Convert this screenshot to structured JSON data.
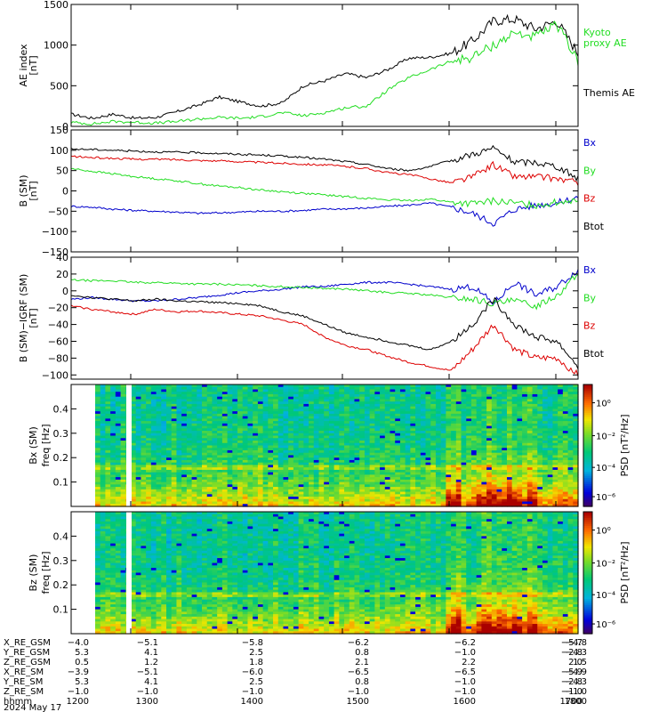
{
  "colors": {
    "black": "#000000",
    "green": "#22dd22",
    "red": "#dd0000",
    "blue": "#0000cc"
  },
  "chart_data": [
    {
      "type": "line",
      "ylabel": "AE index\n[nT]",
      "ylim": [
        0,
        1500
      ],
      "yticks": [
        0,
        500,
        1000,
        1500
      ],
      "x": [
        "1200",
        "1215",
        "1230",
        "1245",
        "1300",
        "1315",
        "1330",
        "1345",
        "1400",
        "1415",
        "1430",
        "1445",
        "1500",
        "1515",
        "1530",
        "1545",
        "1600",
        "1615",
        "1630",
        "1645",
        "1700",
        "1715",
        "1730",
        "1745",
        "1800"
      ],
      "series": [
        {
          "name": "Themis AE",
          "color": "black",
          "values": [
            150,
            100,
            150,
            100,
            110,
            180,
            260,
            360,
            300,
            250,
            290,
            500,
            560,
            650,
            600,
            700,
            840,
            850,
            900,
            1050,
            1300,
            1320,
            1200,
            1300,
            900
          ]
        },
        {
          "name": "Kyoto\nproxy AE",
          "color": "green",
          "values": [
            50,
            30,
            60,
            50,
            40,
            60,
            90,
            110,
            100,
            120,
            170,
            130,
            170,
            230,
            250,
            450,
            600,
            700,
            800,
            850,
            1000,
            1150,
            1100,
            1250,
            800
          ]
        }
      ]
    },
    {
      "type": "line",
      "ylabel": "B (SM)\n[nT]",
      "ylim": [
        -150,
        150
      ],
      "yticks": [
        -150,
        -100,
        -50,
        0,
        50,
        100,
        150
      ],
      "x": [
        "1200",
        "1215",
        "1230",
        "1245",
        "1300",
        "1315",
        "1330",
        "1345",
        "1400",
        "1415",
        "1430",
        "1445",
        "1500",
        "1515",
        "1530",
        "1545",
        "1600",
        "1615",
        "1630",
        "1645",
        "1700",
        "1715",
        "1730",
        "1745",
        "1800"
      ],
      "series": [
        {
          "name": "Bx",
          "color": "blue",
          "values": [
            -38,
            -40,
            -45,
            -48,
            -50,
            -52,
            -55,
            -54,
            -52,
            -50,
            -50,
            -48,
            -45,
            -44,
            -42,
            -38,
            -35,
            -30,
            -40,
            -55,
            -80,
            -45,
            -35,
            -30,
            -15
          ]
        },
        {
          "name": "By",
          "color": "green",
          "values": [
            55,
            48,
            42,
            35,
            30,
            25,
            18,
            12,
            8,
            2,
            -2,
            -6,
            -10,
            -14,
            -18,
            -22,
            -24,
            -20,
            -28,
            -32,
            -25,
            -30,
            -35,
            -28,
            -20
          ]
        },
        {
          "name": "Bz",
          "color": "red",
          "values": [
            85,
            82,
            80,
            78,
            78,
            77,
            75,
            74,
            72,
            70,
            68,
            66,
            64,
            60,
            55,
            45,
            40,
            30,
            20,
            35,
            65,
            35,
            35,
            30,
            20
          ]
        },
        {
          "name": "Btot",
          "color": "black",
          "values": [
            103,
            102,
            100,
            98,
            96,
            95,
            94,
            92,
            90,
            88,
            86,
            82,
            78,
            72,
            65,
            55,
            50,
            60,
            75,
            90,
            105,
            70,
            70,
            60,
            30
          ]
        }
      ]
    },
    {
      "type": "line",
      "ylabel": "B (SM)−IGRF (SM)\n[nT]",
      "ylim": [
        -105,
        40
      ],
      "yticks": [
        -100,
        -80,
        -60,
        -40,
        -20,
        0,
        20,
        40
      ],
      "x": [
        "1200",
        "1215",
        "1230",
        "1245",
        "1300",
        "1315",
        "1330",
        "1345",
        "1400",
        "1415",
        "1430",
        "1445",
        "1500",
        "1515",
        "1530",
        "1545",
        "1600",
        "1615",
        "1630",
        "1645",
        "1700",
        "1715",
        "1730",
        "1745",
        "1800"
      ],
      "series": [
        {
          "name": "Bx",
          "color": "blue",
          "values": [
            -10,
            -8,
            -10,
            -12,
            -12,
            -10,
            -8,
            -5,
            -2,
            0,
            2,
            5,
            5,
            8,
            10,
            10,
            8,
            5,
            2,
            5,
            -15,
            10,
            -5,
            5,
            25
          ]
        },
        {
          "name": "By",
          "color": "green",
          "values": [
            13,
            12,
            12,
            10,
            10,
            9,
            8,
            8,
            7,
            6,
            5,
            4,
            3,
            2,
            0,
            -2,
            -3,
            -5,
            -8,
            -10,
            -15,
            -12,
            -18,
            -5,
            20
          ]
        },
        {
          "name": "Bz",
          "color": "red",
          "values": [
            -18,
            -22,
            -25,
            -28,
            -22,
            -25,
            -24,
            -26,
            -28,
            -30,
            -35,
            -40,
            -55,
            -65,
            -70,
            -78,
            -85,
            -90,
            -95,
            -70,
            -40,
            -70,
            -80,
            -80,
            -100
          ]
        },
        {
          "name": "Btot",
          "color": "black",
          "values": [
            -5,
            -8,
            -10,
            -12,
            -10,
            -12,
            -13,
            -14,
            -15,
            -18,
            -25,
            -30,
            -40,
            -50,
            -55,
            -60,
            -65,
            -70,
            -60,
            -40,
            -10,
            -40,
            -55,
            -60,
            -90
          ]
        }
      ]
    },
    {
      "type": "heatmap",
      "ylabel": "Bx (SM)\nfreq [Hz]",
      "ylim": [
        0,
        0.5
      ],
      "yticks": [
        0.1,
        0.2,
        0.3,
        0.4
      ],
      "colorbar_label": "PSD [nT²/Hz]",
      "colorbar_ticks": [
        "10⁰",
        "10⁻²",
        "10⁻⁴",
        "10⁻⁶"
      ]
    },
    {
      "type": "heatmap",
      "ylabel": "Bz (SM)\nfreq [Hz]",
      "ylim": [
        0,
        0.5
      ],
      "yticks": [
        0.1,
        0.2,
        0.3,
        0.4
      ],
      "colorbar_label": "PSD [nT²/Hz]",
      "colorbar_ticks": [
        "10⁰",
        "10⁻²",
        "10⁻⁴",
        "10⁻⁶"
      ]
    }
  ],
  "ephemeris": {
    "rows": [
      {
        "label": "X_RE_GSM",
        "values": [
          "−4.0",
          "−5.1",
          "−5.8",
          "−6.2",
          "−6.2",
          "−5.7",
          "−4.8"
        ]
      },
      {
        "label": "Y_RE_GSM",
        "values": [
          "5.3",
          "4.1",
          "2.5",
          "0.8",
          "−1.0",
          "−2.8",
          "−4.3"
        ]
      },
      {
        "label": "Z_RE_GSM",
        "values": [
          "0.5",
          "1.2",
          "1.8",
          "2.1",
          "2.2",
          "2.0",
          "1.5"
        ]
      },
      {
        "label": "X_RE_SM",
        "values": [
          "−3.9",
          "−5.1",
          "−6.0",
          "−6.5",
          "−6.5",
          "−5.9",
          "−4.9"
        ]
      },
      {
        "label": "Y_RE_SM",
        "values": [
          "5.3",
          "4.1",
          "2.5",
          "0.8",
          "−1.0",
          "−2.8",
          "−4.3"
        ]
      },
      {
        "label": "Z_RE_SM",
        "values": [
          "−1.0",
          "−1.0",
          "−1.0",
          "−1.0",
          "−1.0",
          "−1.0",
          "−1.0"
        ]
      },
      {
        "label": "hhmm",
        "values": [
          "1200",
          "1300",
          "1400",
          "1500",
          "1600",
          "1700",
          "1800"
        ]
      }
    ],
    "date": "2024 May 17"
  }
}
